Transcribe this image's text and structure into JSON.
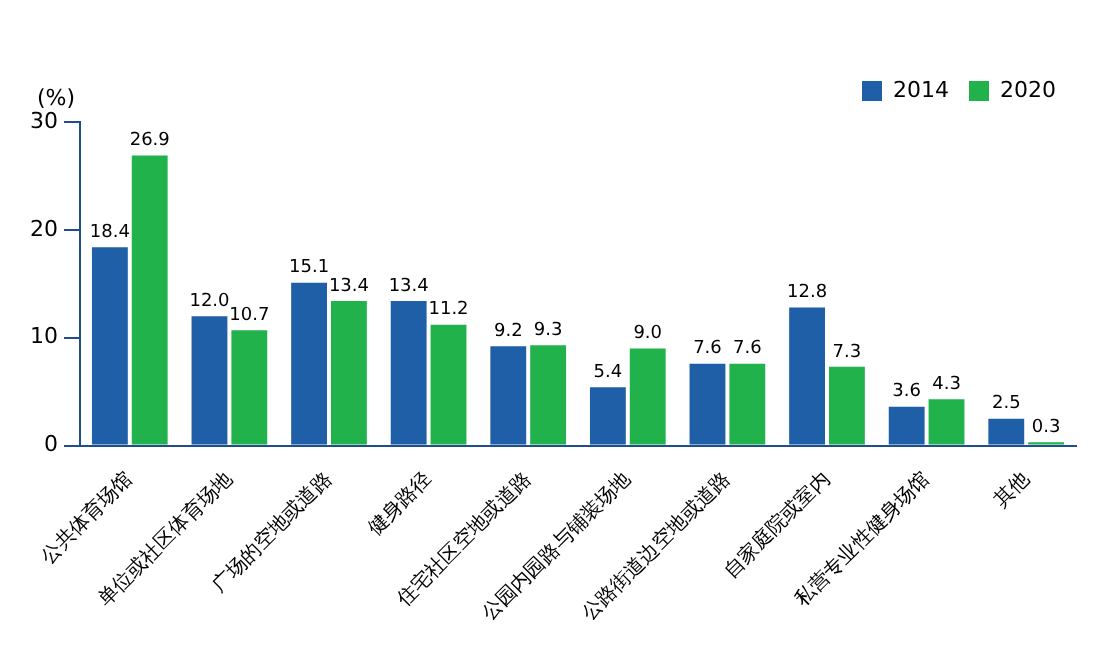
{
  "chart_data": {
    "type": "bar",
    "ylabel": "(%)",
    "categories": [
      "公共体育场馆",
      "单位或社区体育场地",
      "广场的空地或道路",
      "健身路径",
      "住宅社区空地或道路",
      "公园内园路与铺装场地",
      "公路街道边空地或道路",
      "自家庭院或室内",
      "私营专业性健身场馆",
      "其他"
    ],
    "series": [
      {
        "name": "2014",
        "color": "#1f5fa8",
        "values": [
          18.4,
          12.0,
          15.1,
          13.4,
          9.2,
          5.4,
          7.6,
          12.8,
          3.6,
          2.5
        ]
      },
      {
        "name": "2020",
        "color": "#22b24c",
        "values": [
          26.9,
          10.7,
          13.4,
          11.2,
          9.3,
          9.0,
          7.6,
          7.3,
          4.3,
          0.3
        ]
      }
    ],
    "value_labels": [
      [
        "18.4",
        "12.0",
        "15.1",
        "13.4",
        "9.2",
        "5.4",
        "7.6",
        "12.8",
        "3.6",
        "2.5"
      ],
      [
        "26.9",
        "10.7",
        "13.4",
        "11.2",
        "9.3",
        "9.0",
        "7.6",
        "7.3",
        "4.3",
        "0.3"
      ]
    ],
    "ylim": [
      0,
      30
    ],
    "yticks": [
      0,
      10,
      20,
      30
    ],
    "grid": false,
    "legend": "top right"
  }
}
